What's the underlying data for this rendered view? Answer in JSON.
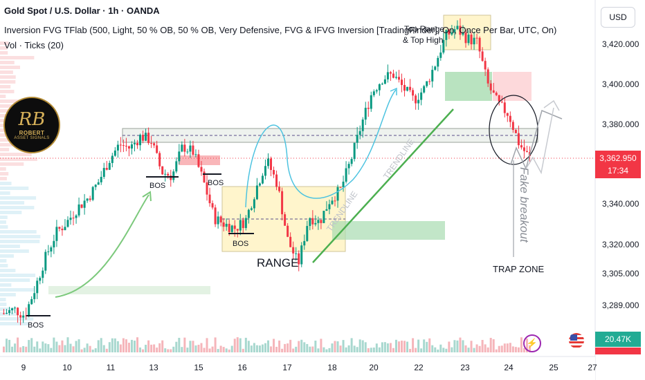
{
  "header": {
    "symbol_line": "Gold Spot / U.S. Dollar · 1h · OANDA",
    "indicator_line": "Inversion FVG TFlab (500, Light, 50 % OB, 50 % OB, Very Defensive, FVG & IFVG Inversion [TradingFinder], On, Once Per Bar, UTC, On)",
    "volume_line": "Vol · Ticks (20)"
  },
  "currency": "USD",
  "logo": {
    "monogram": "RB",
    "name": "ROBERT",
    "subtitle": "ASSET SIGNALS"
  },
  "price_tag": {
    "price": "3,362.950",
    "countdown": "17:34"
  },
  "volume_tag": "20.47K",
  "icons": {
    "lightning": "lightning-icon",
    "flag": "us-flag-icon"
  },
  "colors": {
    "up": "#089981",
    "down": "#f23645",
    "zone_yellow": "#fff5cc",
    "zone_green": "#9fd8a8",
    "zone_red": "#f8b4b8",
    "arrow_blue": "#4dc3e0",
    "arrow_green": "#7cc97c"
  },
  "chart_data": {
    "type": "candlestick",
    "y_axis": {
      "ticks": [
        3420.0,
        3400.0,
        3380.0,
        3362.95,
        3340.0,
        3320.0,
        3305.0,
        3289.0
      ],
      "tick_labels": [
        "3,420.000",
        "3,400.000",
        "3,380.000",
        "3,362.950",
        "3,340.000",
        "3,320.000",
        "3,305.000",
        "3,289.000"
      ]
    },
    "x_axis": {
      "tick_labels": [
        "9",
        "10",
        "11",
        "13",
        "15",
        "16",
        "17",
        "18",
        "20",
        "22",
        "23",
        "24",
        "25",
        "27"
      ]
    },
    "close_series": [
      3285,
      3287,
      3284,
      3298,
      3314,
      3326,
      3331,
      3338,
      3343,
      3351,
      3362,
      3370,
      3368,
      3374,
      3372,
      3356,
      3354,
      3369,
      3366,
      3351,
      3333,
      3330,
      3328,
      3332,
      3348,
      3362,
      3350,
      3322,
      3310,
      3334,
      3331,
      3342,
      3347,
      3362,
      3380,
      3396,
      3403,
      3405,
      3398,
      3392,
      3398,
      3410,
      3424,
      3428,
      3423,
      3421,
      3400,
      3390,
      3385,
      3370,
      3362.95
    ],
    "annotations": [
      "BOS",
      "BOS",
      "BOS",
      "BOS",
      "RANGE",
      "TRENDLINE",
      "TRENDLINE",
      "Top Range & Top High",
      "TRAP ZONE",
      "Fake breakout"
    ]
  }
}
